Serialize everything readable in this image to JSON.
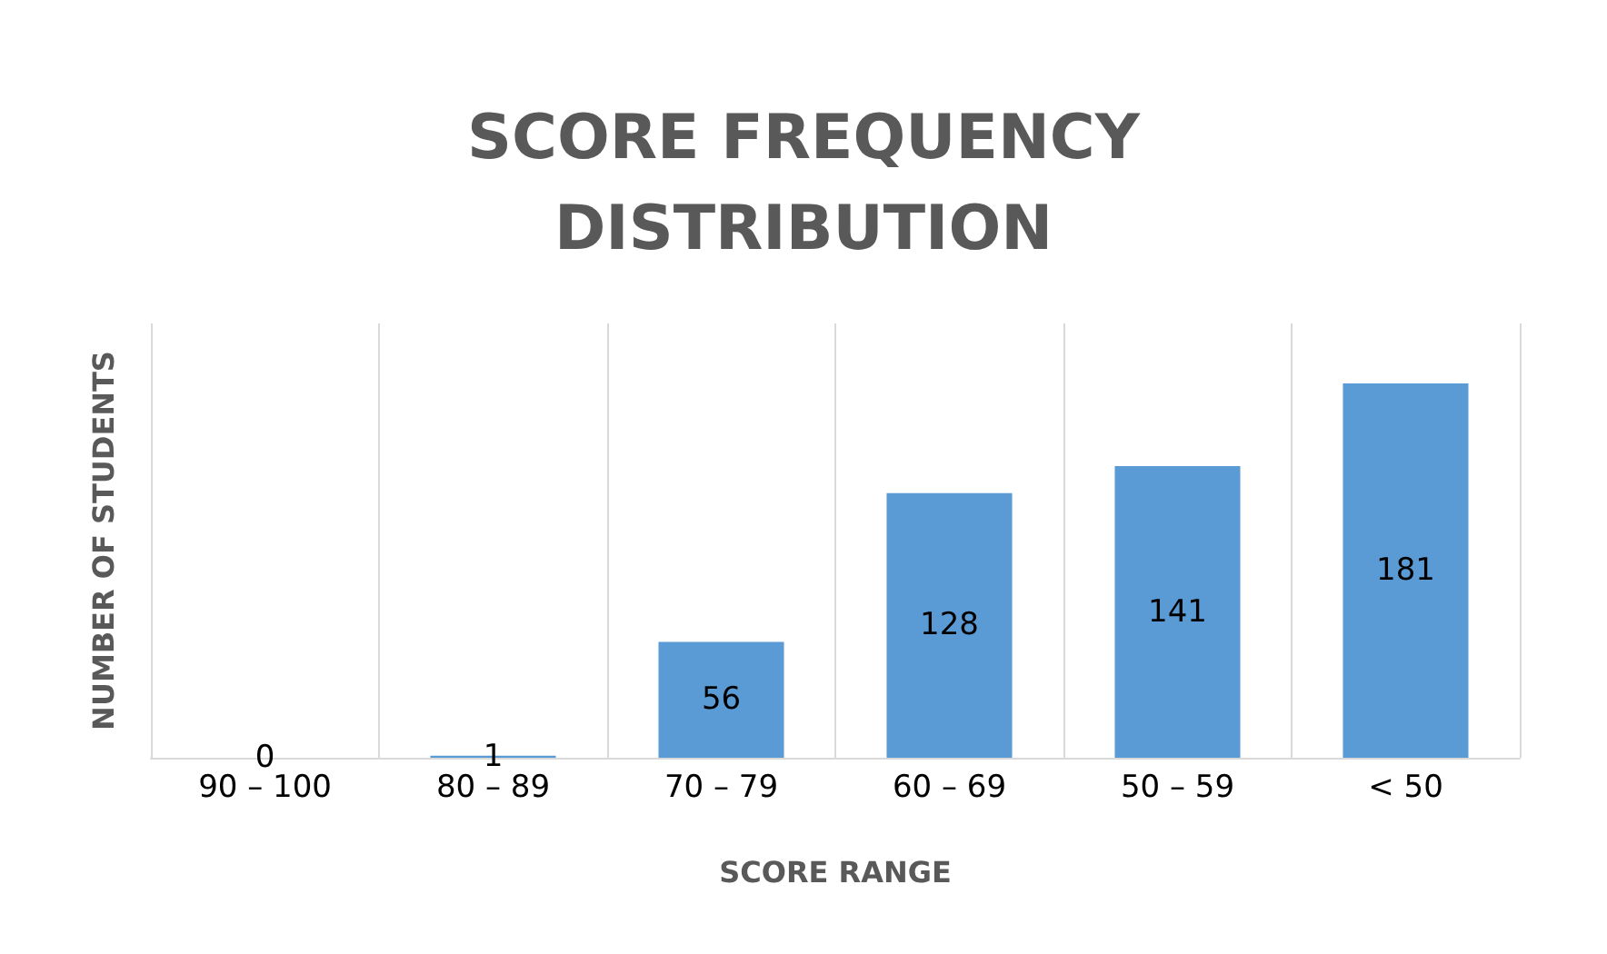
{
  "chart_data": {
    "type": "bar",
    "title": "SCORE FREQUENCY\nDISTRIBUTION",
    "xlabel": "SCORE RANGE",
    "ylabel": "NUMBER OF STUDENTS",
    "categories": [
      "90 – 100",
      "80 – 89",
      "70 – 79",
      "60 – 69",
      "50 – 59",
      "< 50"
    ],
    "values": [
      0,
      1,
      56,
      128,
      141,
      181
    ],
    "color": "#5b9bd5",
    "data_labels": true,
    "grid": "x"
  }
}
